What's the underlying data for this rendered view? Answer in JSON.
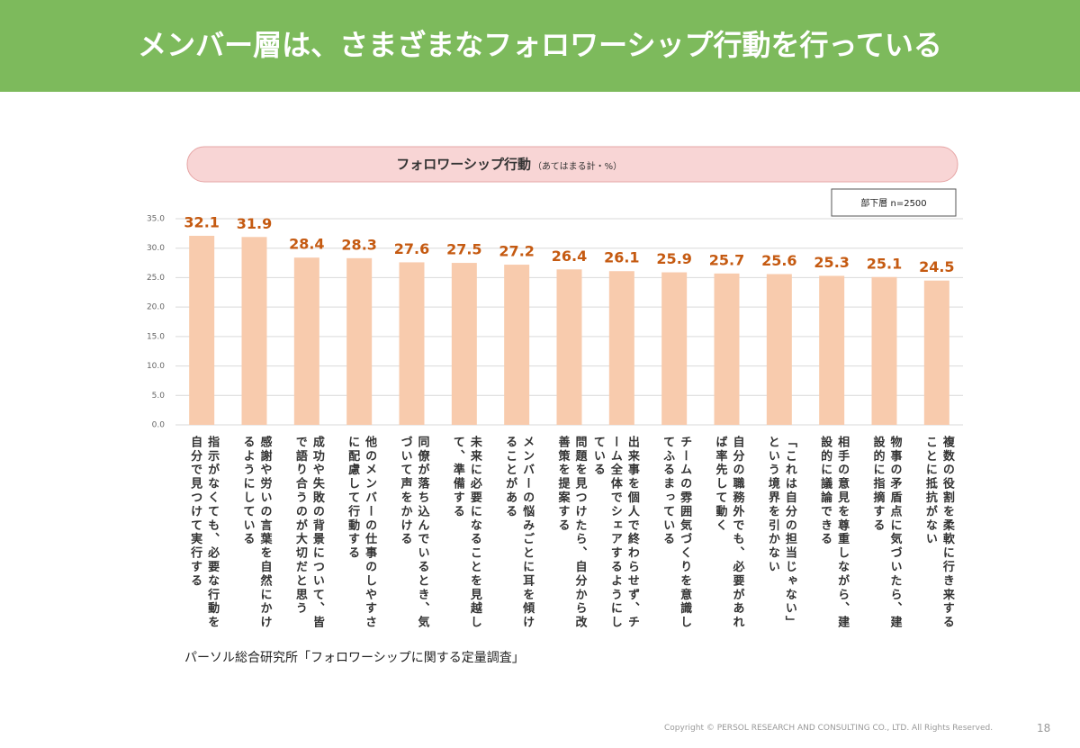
{
  "header": {
    "title": "メンバー層は、さまざまなフォロワーシップ行動を行っている"
  },
  "chart_data": {
    "type": "bar",
    "title": "フォロワーシップ行動",
    "subtitle": "（あてはまる計・%）",
    "categories": [
      "指示がなくても、必要な行動を自分で見つけて実行する",
      "感謝や労いの言葉を自然にかけるようにしている",
      "成功や失敗の背景について、皆で語り合うのが大切だと思う",
      "他のメンバーの仕事のしやすさに配慮して行動する",
      "同僚が落ち込んでいるとき、気づいて声をかける",
      "未来に必要になることを見越して、準備する",
      "メンバーの悩みごとに耳を傾けることがある",
      "問題を見つけたら、自分から改善策を提案する",
      "出来事を個人で終わらせず、チーム全体でシェアするようにしている",
      "チームの雰囲気づくりを意識してふるまっている",
      "自分の職務外でも、必要があれば率先して動く",
      "「これは自分の担当じゃない」という境界を引かない",
      "相手の意見を尊重しながら、建設的に議論できる",
      "物事の矛盾点に気づいたら、建設的に指摘する",
      "複数の役割を柔軟に行き来することに抵抗がない"
    ],
    "series": [
      {
        "name": "部下層 n=2500",
        "color": "#f8cbad",
        "label_color": "#c55a11",
        "values": [
          32.1,
          31.9,
          28.4,
          28.3,
          27.6,
          27.5,
          27.2,
          26.4,
          26.1,
          25.9,
          25.7,
          25.6,
          25.3,
          25.1,
          24.5
        ]
      }
    ],
    "ylim": [
      0,
      35
    ],
    "yticks": [
      {
        "value": 0,
        "label": "0.0"
      },
      {
        "value": 5,
        "label": "5.0"
      },
      {
        "value": 10,
        "label": "10.0"
      },
      {
        "value": 15,
        "label": "15.0"
      },
      {
        "value": 20,
        "label": "20.0"
      },
      {
        "value": 25,
        "label": "25.0"
      },
      {
        "value": 30,
        "label": "30.0"
      },
      {
        "value": 35,
        "label": "35.0"
      }
    ],
    "grid": true,
    "legend": "top-right",
    "source": "パーソル総合研究所「フォロワーシップに関する定量調査」"
  },
  "footer": {
    "copyright": "Copyright © PERSOL RESEARCH AND CONSULTING CO., LTD. All Rights Reserved.",
    "page": "18"
  }
}
